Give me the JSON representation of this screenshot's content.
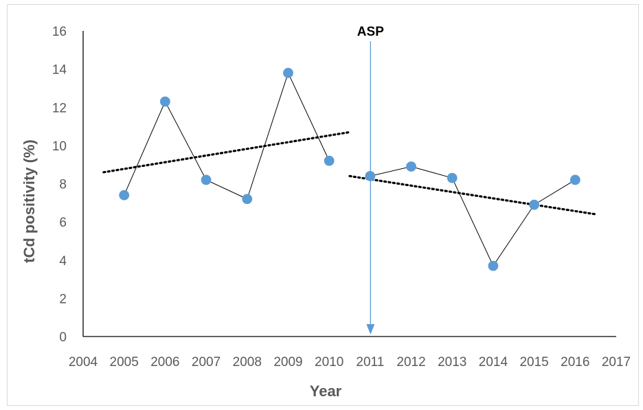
{
  "chart_data": {
    "type": "scatter",
    "xlabel": "Year",
    "ylabel": "tCd positivity (%)",
    "xlim": [
      2004,
      2017
    ],
    "ylim": [
      0,
      16
    ],
    "x_ticks": [
      "2004",
      "2005",
      "2006",
      "2007",
      "2008",
      "2009",
      "2010",
      "2011",
      "2012",
      "2013",
      "2014",
      "2015",
      "2016",
      "2017"
    ],
    "y_ticks": [
      "0",
      "2",
      "4",
      "6",
      "8",
      "10",
      "12",
      "14",
      "16"
    ],
    "grid": false,
    "legend": "none",
    "series": [
      {
        "x": [
          2005,
          2006,
          2007,
          2008,
          2009,
          2010
        ],
        "y": [
          7.4,
          12.3,
          8.2,
          7.2,
          13.8,
          9.2
        ],
        "trend": {
          "x": [
            2004.5,
            2010.5
          ],
          "y": [
            8.6,
            10.7
          ]
        }
      },
      {
        "x": [
          2011,
          2012,
          2013,
          2014,
          2015,
          2016
        ],
        "y": [
          8.4,
          8.9,
          8.3,
          3.7,
          6.9,
          8.2
        ],
        "trend": {
          "x": [
            2010.5,
            2016.5
          ],
          "y": [
            8.4,
            6.4
          ]
        }
      }
    ],
    "annotations": [
      {
        "text": "ASP",
        "x": 2011
      }
    ],
    "colors": {
      "marker": "#5b9bd5",
      "line": "#000000",
      "trend": "#000000",
      "arrow": "#5b9bd5",
      "axis": "#000000",
      "text": "#595959"
    }
  }
}
